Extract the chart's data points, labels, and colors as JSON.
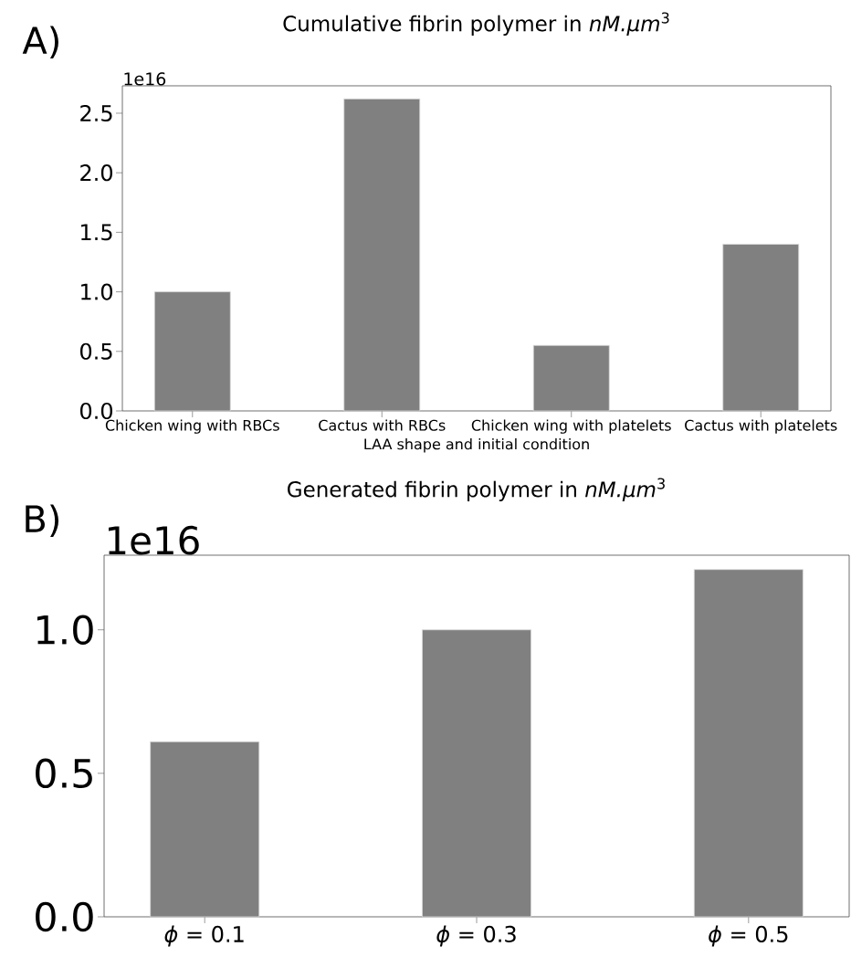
{
  "chart_data": [
    {
      "type": "bar",
      "title": "Cumulative fibrin polymer in *nM.µm*$^{3}$",
      "xlabel": "LAA shape and initial condition",
      "categories": [
        "Chicken wing with RBCs",
        "Cactus with RBCs",
        "Chicken wing with platelets",
        "Cactus with platelets"
      ],
      "values": [
        1.0,
        2.62,
        0.55,
        1.4
      ],
      "color": "#808080",
      "ylim": [
        0,
        2.73
      ],
      "yticks": [
        {
          "value": 0,
          "label": "0.0"
        },
        {
          "value": 0.5,
          "label": "0.5"
        },
        {
          "value": 1,
          "label": "1.0"
        },
        {
          "value": 1.5,
          "label": "1.5"
        },
        {
          "value": 2,
          "label": "2.0"
        },
        {
          "value": 2.5,
          "label": "2.5"
        }
      ],
      "annotations": [
        "A)",
        "1e16"
      ]
    },
    {
      "type": "bar",
      "title": "Generated fibrin polymer in *nM.µm*$^{3}$",
      "categories": [
        "*ϕ* = 0.1",
        "*ϕ* = 0.3",
        "*ϕ* = 0.5"
      ],
      "values": [
        0.61,
        1.0,
        1.21
      ],
      "color": "#808080",
      "ylim": [
        0,
        1.26
      ],
      "yticks": [
        {
          "value": 0,
          "label": "0.0"
        },
        {
          "value": 0.5,
          "label": "0.5"
        },
        {
          "value": 1,
          "label": "1.0"
        }
      ],
      "annotations": [
        "B)",
        "1e16"
      ]
    }
  ]
}
